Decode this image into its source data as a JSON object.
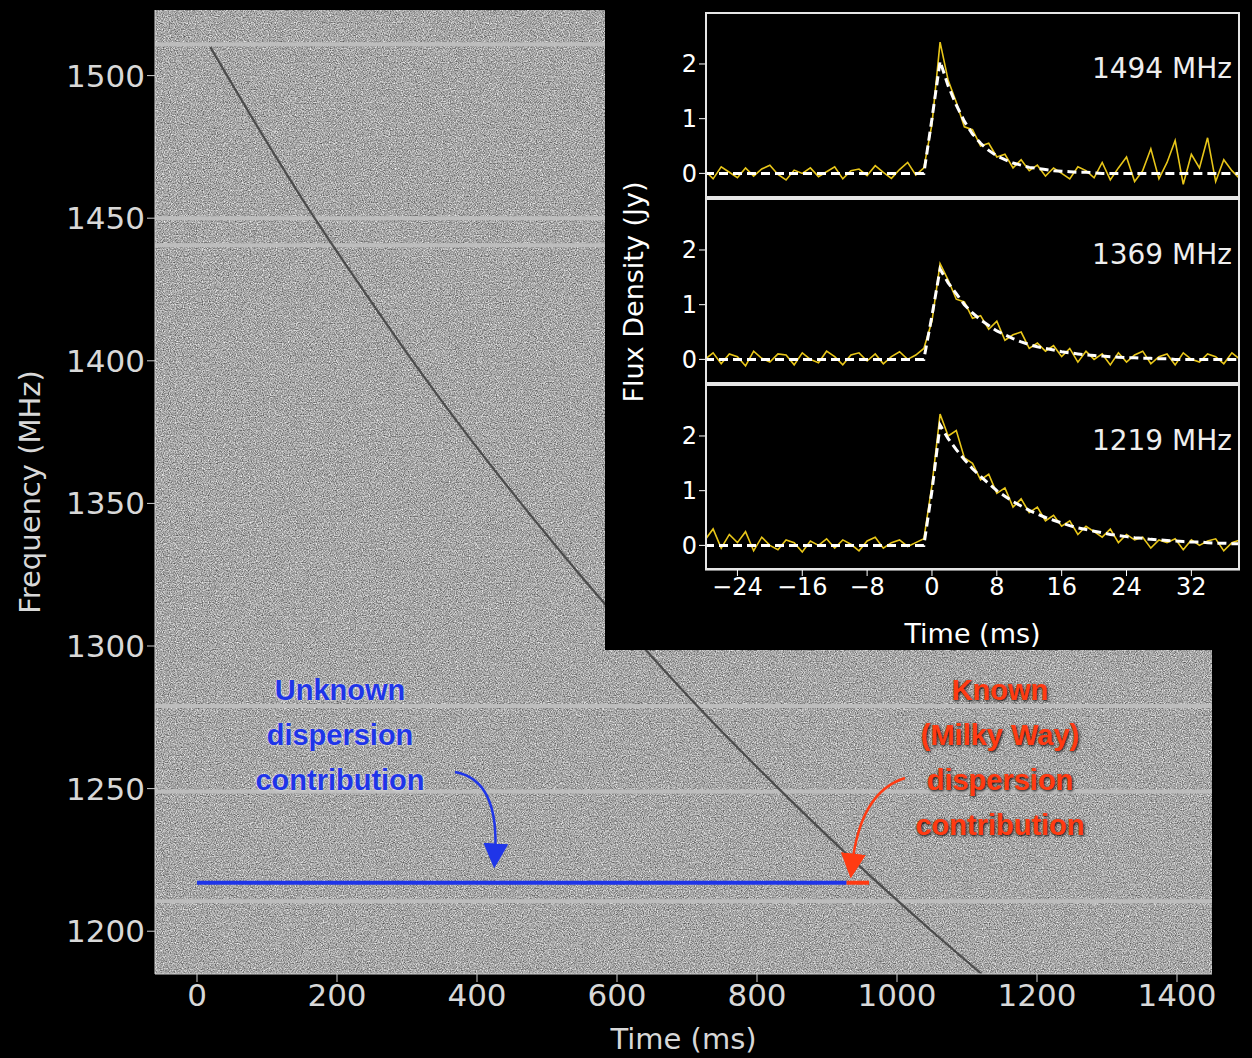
{
  "chart_data": [
    {
      "type": "line",
      "x_label": "Time (ms)",
      "y_label": "Frequency (MHz)",
      "xlim": [
        -60,
        1450
      ],
      "xticks": [
        0,
        200,
        400,
        600,
        800,
        1000,
        1200,
        1400
      ],
      "ylim": [
        1185,
        1523
      ],
      "yticks": [
        1200,
        1250,
        1300,
        1350,
        1400,
        1450,
        1500
      ],
      "x": [
        19,
        43,
        104,
        168,
        237,
        308,
        383,
        463,
        547,
        636,
        730,
        831,
        937,
        1050,
        1121
      ],
      "values": [
        1510,
        1500,
        1475,
        1450,
        1425,
        1400,
        1375,
        1350,
        1325,
        1300,
        1275,
        1250,
        1225,
        1200,
        1185
      ],
      "color": "#3c3c3c",
      "masked_channels": [
        1511,
        1450,
        1440.5,
        1279,
        1249,
        1210.5
      ],
      "annotations": [
        {
          "text": [
            "Unknown",
            "dispersion",
            "contribution"
          ],
          "color": "#1f35e8",
          "x": [
            0,
            928
          ],
          "y": 1217
        },
        {
          "text": [
            "Known",
            "(Milky Way)",
            "dispersion",
            "contribution"
          ],
          "color": "#ff3b12",
          "x": [
            928,
            960
          ],
          "y": 1217
        }
      ]
    },
    {
      "type": "line",
      "x_label": "Time (ms)",
      "y_label": "Flux Density (Jy)",
      "xlim": [
        -28,
        38
      ],
      "xticks": [
        {
          "value": -24,
          "label": "−24"
        },
        {
          "value": -16,
          "label": "−16"
        },
        {
          "value": -8,
          "label": "−8"
        },
        0,
        8,
        16,
        24,
        32
      ],
      "ylim": [
        -0.45,
        2.95
      ],
      "yticks": [
        0,
        1,
        2
      ],
      "x": [
        -28,
        -27,
        -26,
        -25,
        -24,
        -23,
        -22,
        -21,
        -20,
        -19,
        -18,
        -17,
        -16,
        -15,
        -14,
        -13,
        -12,
        -11,
        -10,
        -9,
        -8,
        -7,
        -6,
        -5,
        -4,
        -3,
        -2,
        -1,
        0,
        1,
        2,
        3,
        4,
        5,
        6,
        7,
        8,
        9,
        10,
        11,
        12,
        13,
        14,
        15,
        16,
        17,
        18,
        19,
        20,
        21,
        22,
        23,
        24,
        25,
        26,
        27,
        28,
        29,
        30,
        31,
        32,
        33,
        34,
        35,
        36,
        37,
        38
      ],
      "panels": [
        {
          "title": "1494 MHz",
          "series": [
            {
              "color": "#e8c619",
              "line_style": "solid",
              "values": [
                0.05,
                -0.1,
                0.12,
                0.02,
                -0.08,
                0.1,
                -0.05,
                0.08,
                0.15,
                -0.02,
                -0.12,
                0.06,
                0.0,
                0.1,
                -0.06,
                0.03,
                0.12,
                -0.1,
                0.05,
                0.08,
                -0.04,
                0.14,
                0.02,
                -0.09,
                0.07,
                0.2,
                -0.03,
                0.1,
                0.9,
                2.4,
                1.7,
                1.3,
                0.85,
                0.8,
                0.5,
                0.55,
                0.3,
                0.35,
                0.1,
                0.25,
                0.05,
                0.15,
                -0.05,
                0.1,
                0.0,
                -0.1,
                0.12,
                0.05,
                -0.08,
                0.2,
                -0.12,
                0.1,
                0.3,
                -0.15,
                0.05,
                0.45,
                -0.1,
                0.2,
                0.6,
                -0.2,
                0.35,
                0.1,
                0.65,
                -0.15,
                0.25,
                0.05,
                -0.1
              ]
            },
            {
              "color": "#ffffff",
              "line_style": "dashed",
              "values": [
                0,
                0,
                0,
                0,
                0,
                0,
                0,
                0,
                0,
                0,
                0,
                0,
                0,
                0,
                0,
                0,
                0,
                0,
                0,
                0,
                0,
                0,
                0,
                0,
                0,
                0,
                0,
                0,
                1.0,
                2.05,
                1.6,
                1.25,
                0.95,
                0.72,
                0.55,
                0.42,
                0.32,
                0.25,
                0.19,
                0.15,
                0.11,
                0.09,
                0.07,
                0.05,
                0.04,
                0.03,
                0.02,
                0.02,
                0.01,
                0,
                0,
                0,
                0,
                0,
                0,
                0,
                0,
                0,
                0,
                0,
                0,
                0,
                0,
                0,
                0,
                0,
                0
              ]
            }
          ]
        },
        {
          "title": "1369 MHz",
          "series": [
            {
              "color": "#e8c619",
              "line_style": "solid",
              "values": [
                0.0,
                0.12,
                -0.08,
                0.1,
                0.05,
                -0.12,
                0.15,
                0.02,
                -0.05,
                0.1,
                0.08,
                -0.1,
                0.12,
                0.0,
                -0.06,
                0.15,
                0.05,
                -0.1,
                0.08,
                0.12,
                -0.03,
                0.1,
                -0.08,
                0.05,
                0.14,
                0.0,
                0.08,
                0.2,
                0.7,
                1.75,
                1.45,
                1.1,
                1.05,
                0.75,
                0.8,
                0.55,
                0.7,
                0.35,
                0.45,
                0.5,
                0.2,
                0.3,
                0.15,
                0.25,
                0.05,
                0.2,
                -0.05,
                0.15,
                0.0,
                0.1,
                -0.1,
                0.12,
                -0.05,
                0.08,
                0.15,
                -0.08,
                0.05,
                0.1,
                -0.1,
                0.12,
                0.0,
                -0.05,
                0.1,
                0.05,
                -0.08,
                0.12,
                0.0
              ]
            },
            {
              "color": "#ffffff",
              "line_style": "dashed",
              "values": [
                0,
                0,
                0,
                0,
                0,
                0,
                0,
                0,
                0,
                0,
                0,
                0,
                0,
                0,
                0,
                0,
                0,
                0,
                0,
                0,
                0,
                0,
                0,
                0,
                0,
                0,
                0,
                0,
                0.8,
                1.65,
                1.4,
                1.2,
                1.0,
                0.85,
                0.72,
                0.62,
                0.52,
                0.45,
                0.38,
                0.32,
                0.27,
                0.23,
                0.2,
                0.17,
                0.14,
                0.12,
                0.1,
                0.08,
                0.07,
                0.06,
                0.05,
                0.04,
                0.03,
                0.03,
                0.02,
                0.02,
                0.01,
                0.01,
                0,
                0,
                0,
                0,
                0,
                0,
                0,
                0,
                0
              ]
            }
          ]
        },
        {
          "title": "1219 MHz",
          "series": [
            {
              "color": "#e8c619",
              "line_style": "solid",
              "values": [
                0.1,
                0.3,
                -0.05,
                0.2,
                0.05,
                0.25,
                -0.1,
                0.15,
                0.0,
                -0.08,
                0.1,
                0.05,
                -0.12,
                0.08,
                0.0,
                0.12,
                -0.05,
                0.1,
                0.02,
                -0.1,
                0.08,
                0.15,
                -0.05,
                0.05,
                0.1,
                -0.02,
                0.05,
                0.12,
                1.1,
                2.4,
                2.0,
                2.1,
                1.6,
                1.5,
                1.2,
                1.3,
                0.95,
                1.05,
                0.7,
                0.85,
                0.6,
                0.7,
                0.45,
                0.55,
                0.35,
                0.45,
                0.2,
                0.35,
                0.25,
                0.15,
                0.3,
                0.05,
                0.2,
                0.1,
                0.15,
                -0.05,
                0.1,
                0.05,
                0.12,
                -0.08,
                0.1,
                0.0,
                0.08,
                0.12,
                -0.1,
                0.05,
                0.1
              ]
            },
            {
              "color": "#ffffff",
              "line_style": "dashed",
              "values": [
                0,
                0,
                0,
                0,
                0,
                0,
                0,
                0,
                0,
                0,
                0,
                0,
                0,
                0,
                0,
                0,
                0,
                0,
                0,
                0,
                0,
                0,
                0,
                0,
                0,
                0,
                0,
                0,
                1.0,
                2.2,
                1.95,
                1.75,
                1.57,
                1.4,
                1.26,
                1.13,
                1.0,
                0.9,
                0.8,
                0.72,
                0.64,
                0.57,
                0.51,
                0.46,
                0.41,
                0.36,
                0.32,
                0.29,
                0.26,
                0.23,
                0.2,
                0.18,
                0.16,
                0.14,
                0.13,
                0.11,
                0.1,
                0.09,
                0.08,
                0.07,
                0.06,
                0.06,
                0.05,
                0.04,
                0.04,
                0.03,
                0.03
              ]
            }
          ]
        }
      ]
    }
  ]
}
